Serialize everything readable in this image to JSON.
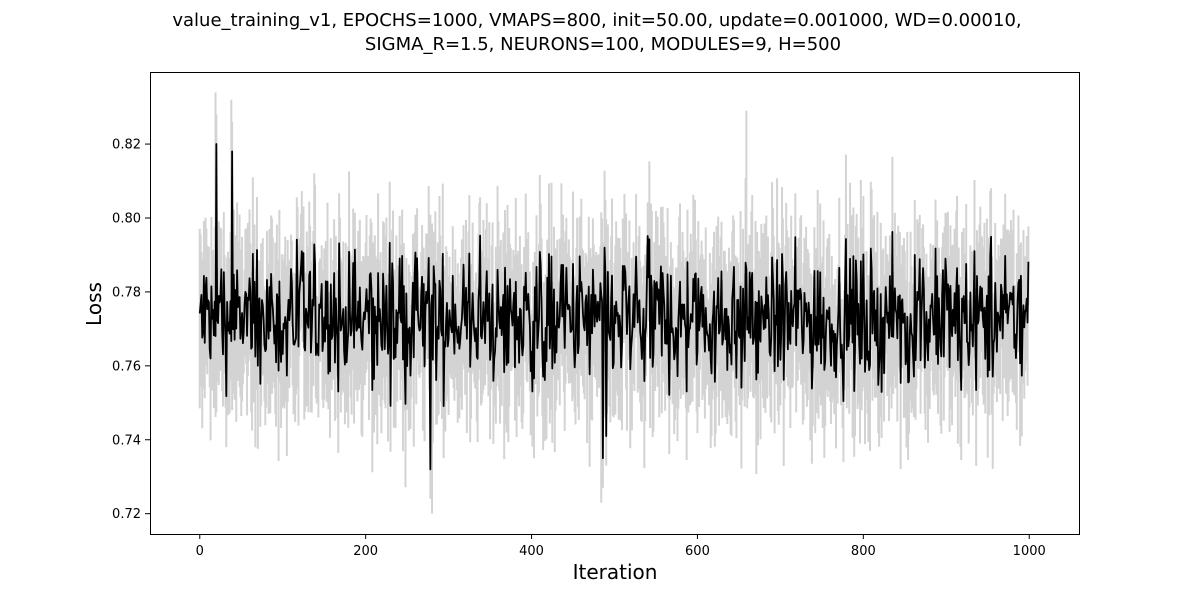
{
  "chart_data": {
    "type": "line",
    "title_lines": [
      "value_training_v1, EPOCHS=1000, VMAPS=800, init=50.00, update=0.001000, WD=0.00010,",
      "SIGMA_R=1.5, NEURONS=100, MODULES=9, H=500"
    ],
    "xlabel": "Iteration",
    "ylabel": "Loss",
    "xlim": [
      -60,
      1060
    ],
    "ylim": [
      0.7145,
      0.8395
    ],
    "xticks": [
      0,
      200,
      400,
      600,
      800,
      1000
    ],
    "xtick_labels": [
      "0",
      "200",
      "400",
      "600",
      "800",
      "1000"
    ],
    "yticks": [
      0.72,
      0.74,
      0.76,
      0.78,
      0.8,
      0.82
    ],
    "ytick_labels": [
      "0.72",
      "0.74",
      "0.76",
      "0.78",
      "0.80",
      "0.82"
    ],
    "grid": false,
    "colors": {
      "mean_line": "#000000",
      "error_band": "#d3d3d3"
    },
    "x_range": [
      0,
      999
    ],
    "mean": {
      "typical_range": [
        0.75,
        0.795
      ],
      "notable_points": [
        {
          "x": 20,
          "y": 0.82
        },
        {
          "x": 39,
          "y": 0.818
        },
        {
          "x": 278,
          "y": 0.732
        },
        {
          "x": 486,
          "y": 0.735
        },
        {
          "x": 490,
          "y": 0.741
        }
      ]
    },
    "error_band": {
      "typical_upper_range": [
        0.78,
        0.815
      ],
      "typical_lower_range": [
        0.74,
        0.76
      ],
      "notable_points": [
        {
          "x": 19,
          "y": 0.834
        },
        {
          "x": 38,
          "y": 0.832
        },
        {
          "x": 280,
          "y": 0.72
        },
        {
          "x": 484,
          "y": 0.723
        },
        {
          "x": 659,
          "y": 0.829
        }
      ]
    }
  }
}
